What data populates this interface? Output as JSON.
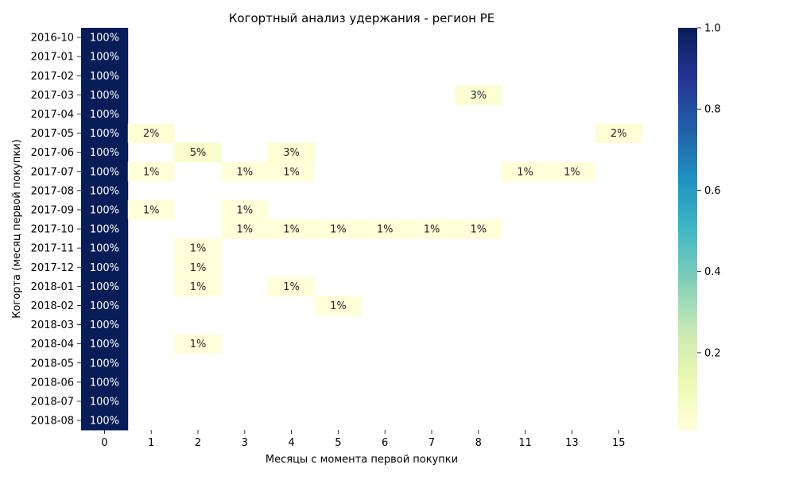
{
  "chart_data": {
    "type": "heatmap",
    "title": "Когортный анализ удержания - регион PE",
    "xlabel": "Месяцы с момента первой покупки",
    "ylabel": "Когорта (месяц первой покупки)",
    "x_categories": [
      "0",
      "1",
      "2",
      "3",
      "4",
      "5",
      "6",
      "7",
      "8",
      "11",
      "13",
      "15"
    ],
    "y_categories": [
      "2016-10",
      "2017-01",
      "2017-02",
      "2017-03",
      "2017-04",
      "2017-05",
      "2017-06",
      "2017-07",
      "2017-08",
      "2017-09",
      "2017-10",
      "2017-11",
      "2017-12",
      "2018-01",
      "2018-02",
      "2018-03",
      "2018-04",
      "2018-05",
      "2018-06",
      "2018-07",
      "2018-08"
    ],
    "values": [
      [
        1.0,
        null,
        null,
        null,
        null,
        null,
        null,
        null,
        null,
        null,
        null,
        null
      ],
      [
        1.0,
        null,
        null,
        null,
        null,
        null,
        null,
        null,
        null,
        null,
        null,
        null
      ],
      [
        1.0,
        null,
        null,
        null,
        null,
        null,
        null,
        null,
        null,
        null,
        null,
        null
      ],
      [
        1.0,
        null,
        null,
        null,
        null,
        null,
        null,
        null,
        0.03,
        null,
        null,
        null
      ],
      [
        1.0,
        null,
        null,
        null,
        null,
        null,
        null,
        null,
        null,
        null,
        null,
        null
      ],
      [
        1.0,
        0.02,
        null,
        null,
        null,
        null,
        null,
        null,
        null,
        null,
        null,
        0.02
      ],
      [
        1.0,
        null,
        0.05,
        null,
        0.03,
        null,
        null,
        null,
        null,
        null,
        null,
        null
      ],
      [
        1.0,
        0.01,
        null,
        0.01,
        0.01,
        null,
        null,
        null,
        null,
        0.01,
        0.01,
        null
      ],
      [
        1.0,
        null,
        null,
        null,
        null,
        null,
        null,
        null,
        null,
        null,
        null,
        null
      ],
      [
        1.0,
        0.01,
        null,
        0.01,
        null,
        null,
        null,
        null,
        null,
        null,
        null,
        null
      ],
      [
        1.0,
        null,
        null,
        0.01,
        0.01,
        0.01,
        0.01,
        0.01,
        0.01,
        null,
        null,
        null
      ],
      [
        1.0,
        null,
        0.01,
        null,
        null,
        null,
        null,
        null,
        null,
        null,
        null,
        null
      ],
      [
        1.0,
        null,
        0.01,
        null,
        null,
        null,
        null,
        null,
        null,
        null,
        null,
        null
      ],
      [
        1.0,
        null,
        0.01,
        null,
        0.01,
        null,
        null,
        null,
        null,
        null,
        null,
        null
      ],
      [
        1.0,
        null,
        null,
        null,
        null,
        0.01,
        null,
        null,
        null,
        null,
        null,
        null
      ],
      [
        1.0,
        null,
        null,
        null,
        null,
        null,
        null,
        null,
        null,
        null,
        null,
        null
      ],
      [
        1.0,
        null,
        0.01,
        null,
        null,
        null,
        null,
        null,
        null,
        null,
        null,
        null
      ],
      [
        1.0,
        null,
        null,
        null,
        null,
        null,
        null,
        null,
        null,
        null,
        null,
        null
      ],
      [
        1.0,
        null,
        null,
        null,
        null,
        null,
        null,
        null,
        null,
        null,
        null,
        null
      ],
      [
        1.0,
        null,
        null,
        null,
        null,
        null,
        null,
        null,
        null,
        null,
        null,
        null
      ],
      [
        1.0,
        null,
        null,
        null,
        null,
        null,
        null,
        null,
        null,
        null,
        null,
        null
      ]
    ],
    "cell_labels": [
      [
        "100%",
        "",
        "",
        "",
        "",
        "",
        "",
        "",
        "",
        "",
        "",
        ""
      ],
      [
        "100%",
        "",
        "",
        "",
        "",
        "",
        "",
        "",
        "",
        "",
        "",
        ""
      ],
      [
        "100%",
        "",
        "",
        "",
        "",
        "",
        "",
        "",
        "",
        "",
        "",
        ""
      ],
      [
        "100%",
        "",
        "",
        "",
        "",
        "",
        "",
        "",
        "3%",
        "",
        "",
        ""
      ],
      [
        "100%",
        "",
        "",
        "",
        "",
        "",
        "",
        "",
        "",
        "",
        "",
        ""
      ],
      [
        "100%",
        "2%",
        "",
        "",
        "",
        "",
        "",
        "",
        "",
        "",
        "",
        "2%"
      ],
      [
        "100%",
        "",
        "5%",
        "",
        "3%",
        "",
        "",
        "",
        "",
        "",
        "",
        ""
      ],
      [
        "100%",
        "1%",
        "",
        "1%",
        "1%",
        "",
        "",
        "",
        "",
        "1%",
        "1%",
        ""
      ],
      [
        "100%",
        "",
        "",
        "",
        "",
        "",
        "",
        "",
        "",
        "",
        "",
        ""
      ],
      [
        "100%",
        "1%",
        "",
        "1%",
        "",
        "",
        "",
        "",
        "",
        "",
        "",
        ""
      ],
      [
        "100%",
        "",
        "",
        "1%",
        "1%",
        "1%",
        "1%",
        "1%",
        "1%",
        "",
        "",
        ""
      ],
      [
        "100%",
        "",
        "1%",
        "",
        "",
        "",
        "",
        "",
        "",
        "",
        "",
        ""
      ],
      [
        "100%",
        "",
        "1%",
        "",
        "",
        "",
        "",
        "",
        "",
        "",
        "",
        ""
      ],
      [
        "100%",
        "",
        "1%",
        "",
        "1%",
        "",
        "",
        "",
        "",
        "",
        "",
        ""
      ],
      [
        "100%",
        "",
        "",
        "",
        "",
        "1%",
        "",
        "",
        "",
        "",
        "",
        ""
      ],
      [
        "100%",
        "",
        "",
        "",
        "",
        "",
        "",
        "",
        "",
        "",
        "",
        ""
      ],
      [
        "100%",
        "",
        "1%",
        "",
        "",
        "",
        "",
        "",
        "",
        "",
        "",
        ""
      ],
      [
        "100%",
        "",
        "",
        "",
        "",
        "",
        "",
        "",
        "",
        "",
        "",
        ""
      ],
      [
        "100%",
        "",
        "",
        "",
        "",
        "",
        "",
        "",
        "",
        "",
        "",
        ""
      ],
      [
        "100%",
        "",
        "",
        "",
        "",
        "",
        "",
        "",
        "",
        "",
        "",
        ""
      ],
      [
        "100%",
        "",
        "",
        "",
        "",
        "",
        "",
        "",
        "",
        "",
        "",
        ""
      ]
    ],
    "colormap": "YlGnBu",
    "colorbar": {
      "range": [
        0.01,
        1.0
      ],
      "ticks": [
        "1.0",
        "0.8",
        "0.6",
        "0.4",
        "0.2"
      ],
      "tick_values": [
        1.0,
        0.8,
        0.6,
        0.4,
        0.2
      ]
    },
    "colors": {
      "max": "#081d58",
      "min": "#ffffd9",
      "label_dark_bg": "#ffffff",
      "label_light_bg": "#262626"
    },
    "grid": false,
    "legend": "colorbar-right"
  }
}
